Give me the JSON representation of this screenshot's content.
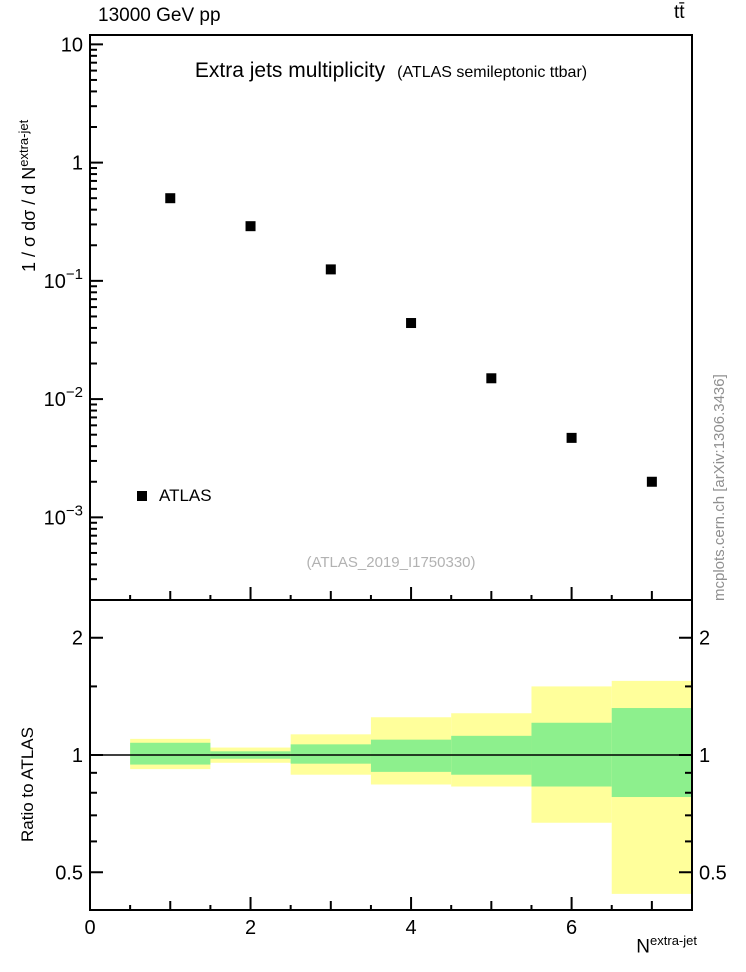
{
  "header": {
    "left": "13000 GeV pp",
    "right": "tt̄"
  },
  "watermark": "(ATLAS_2019_I1750330)",
  "side_text": "mcplots.cern.ch [arXiv:1306.3436]",
  "chart_data": [
    {
      "type": "scatter",
      "panel": "main",
      "title": "Extra jets multiplicity",
      "subtitle": "(ATLAS semileptonic ttbar)",
      "xlabel": "N^extra-jet",
      "xlabel_main": "N",
      "xlabel_sup": "extra-jet",
      "ylabel": "1 / σ dσ / d N^extra-jet",
      "ylabel_main": "1 / σ dσ / d N",
      "ylabel_sup": "extra-jet",
      "xscale": "linear",
      "yscale": "log",
      "xlim": [
        0,
        7.5
      ],
      "ylim": [
        0.0002,
        12
      ],
      "grid": false,
      "legend_position": "lower-left-inside",
      "x_ticks": [
        {
          "v": 0,
          "label": "0"
        },
        {
          "v": 2,
          "label": "2"
        },
        {
          "v": 4,
          "label": "4"
        },
        {
          "v": 6,
          "label": "6"
        }
      ],
      "y_ticks": [
        {
          "v": 10,
          "label": "10"
        },
        {
          "v": 1,
          "label": "1"
        },
        {
          "v": 0.1,
          "base": "10",
          "exp": "−1"
        },
        {
          "v": 0.01,
          "base": "10",
          "exp": "−2"
        },
        {
          "v": 0.001,
          "base": "10",
          "exp": "−3"
        }
      ],
      "series": [
        {
          "name": "ATLAS",
          "marker": "square",
          "color": "#000000",
          "x": [
            1,
            2,
            3,
            4,
            5,
            6,
            7
          ],
          "y": [
            0.5,
            0.29,
            0.125,
            0.044,
            0.015,
            0.0047,
            0.002
          ]
        }
      ]
    },
    {
      "type": "band",
      "panel": "ratio",
      "ylabel": "Ratio to ATLAS",
      "xscale": "linear",
      "yscale": "log",
      "xlim": [
        0,
        7.5
      ],
      "ylim": [
        0.4,
        2.5
      ],
      "reference_line": 1.0,
      "colors": {
        "outer_band": "#ffff9b",
        "inner_band": "#8df08d",
        "reference": "#000000"
      },
      "y_ticks": [
        {
          "v": 2,
          "label": "2"
        },
        {
          "v": 1,
          "label": "1"
        },
        {
          "v": 0.5,
          "label": "0.5"
        }
      ],
      "bands": [
        {
          "x": [
            0.5,
            1.5
          ],
          "outer": [
            0.92,
            1.1
          ],
          "inner": [
            0.945,
            1.075
          ]
        },
        {
          "x": [
            1.5,
            2.5
          ],
          "outer": [
            0.955,
            1.045
          ],
          "inner": [
            0.978,
            1.022
          ]
        },
        {
          "x": [
            2.5,
            3.5
          ],
          "outer": [
            0.89,
            1.13
          ],
          "inner": [
            0.95,
            1.065
          ]
        },
        {
          "x": [
            3.5,
            4.5
          ],
          "outer": [
            0.84,
            1.25
          ],
          "inner": [
            0.905,
            1.095
          ]
        },
        {
          "x": [
            4.5,
            5.5
          ],
          "outer": [
            0.83,
            1.28
          ],
          "inner": [
            0.89,
            1.12
          ]
        },
        {
          "x": [
            5.5,
            6.5
          ],
          "outer": [
            0.67,
            1.5
          ],
          "inner": [
            0.83,
            1.21
          ]
        },
        {
          "x": [
            6.5,
            7.5
          ],
          "outer": [
            0.44,
            1.55
          ],
          "inner": [
            0.78,
            1.32
          ]
        }
      ]
    }
  ]
}
